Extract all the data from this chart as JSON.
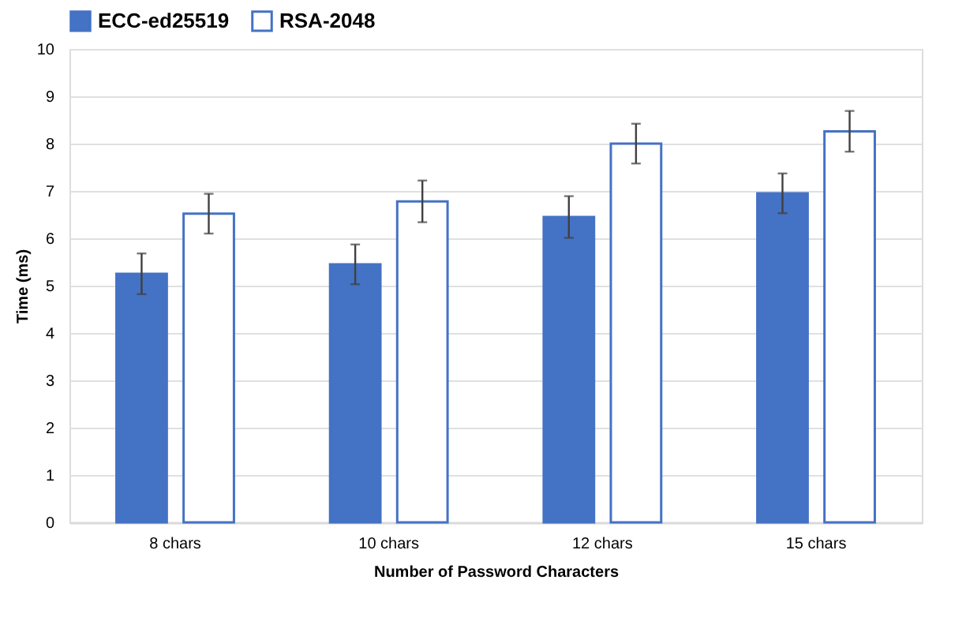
{
  "chart_data": {
    "type": "bar",
    "xlabel": "Number of Password Characters",
    "ylabel": "Time (ms)",
    "categories": [
      "8 chars",
      "10 chars",
      "12 chars",
      "15 chars"
    ],
    "series": [
      {
        "name": "ECC-ed25519",
        "color": "#4472c4",
        "values": [
          5.25,
          5.45,
          6.45,
          6.95
        ],
        "errors": [
          0.43,
          0.42,
          0.44,
          0.42
        ]
      },
      {
        "name": "RSA-2048",
        "color": "#4472c4",
        "values": [
          6.52,
          6.78,
          8.0,
          8.26
        ],
        "errors": [
          0.42,
          0.44,
          0.42,
          0.43
        ]
      }
    ],
    "ylim": [
      0,
      10
    ],
    "yticks": [
      0,
      1,
      2,
      3,
      4,
      5,
      6,
      7,
      8,
      9,
      10
    ],
    "grid": "y",
    "legend": "top"
  }
}
